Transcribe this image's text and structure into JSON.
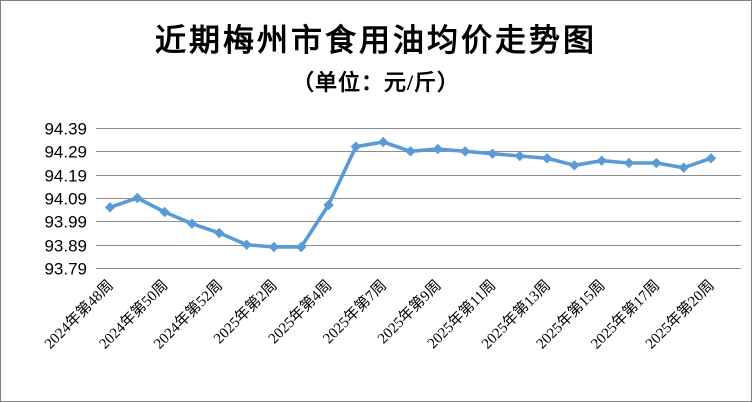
{
  "chart": {
    "title": "近期梅州市食用油均价走势图",
    "subtitle": "（单位：元/斤）"
  },
  "chart_data": {
    "type": "line",
    "title": "近期梅州市食用油均价走势图",
    "subtitle": "（单位：元/斤）",
    "unit": "元/斤",
    "ylim": [
      93.79,
      94.39
    ],
    "y_ticks": [
      94.39,
      94.29,
      94.19,
      94.09,
      93.99,
      93.89,
      93.79
    ],
    "y_tick_decimals": 2,
    "grid": true,
    "legend_position": "none",
    "x_label_interval": 2,
    "x_label_angle_deg": 45,
    "x_tick_labels": [
      "2024年第48周",
      "2024年第50周",
      "2024年第52周",
      "2025年第2周",
      "2025年第4周",
      "2025年第7周",
      "2025年第9周",
      "2025年第11周",
      "2025年第13周",
      "2025年第15周",
      "2025年第17周",
      "2025年第20周"
    ],
    "values": [
      94.05,
      94.09,
      94.03,
      93.98,
      93.94,
      93.89,
      93.88,
      93.88,
      94.06,
      94.31,
      94.33,
      94.29,
      94.3,
      94.29,
      94.28,
      94.27,
      94.26,
      94.23,
      94.25,
      94.24,
      94.24,
      94.22,
      94.26
    ],
    "marker": "diamond",
    "colors": {
      "line": "#5B9BD5",
      "marker": "#5B9BD5",
      "gridline": "#8C8C8C",
      "text": "#000000",
      "frame_border": "#808080",
      "background": "#FFFFFF"
    }
  }
}
